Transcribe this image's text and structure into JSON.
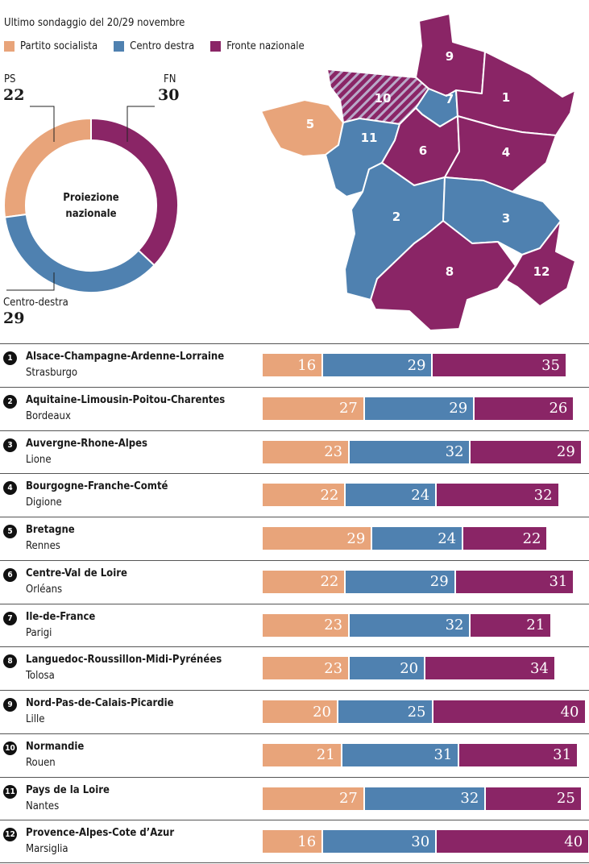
{
  "subtitle": "Ultimo sondaggio del 20/29 novembre",
  "colors": {
    "ps": "#e8a47a",
    "cd": "#4f81b0",
    "fn": "#8a2566"
  },
  "legend": [
    {
      "label": "Partito socialista",
      "color": "#e8a47a"
    },
    {
      "label": "Centro destra",
      "color": "#4f81b0"
    },
    {
      "label": "Fronte nazionale",
      "color": "#8a2566"
    }
  ],
  "national": {
    "center_label_1": "Proiezione",
    "center_label_2": "nazionale",
    "ps_label": "PS",
    "ps_value": "22",
    "fn_label": "FN",
    "fn_value": "30",
    "cd_label": "Centro-destra",
    "cd_value": "29"
  },
  "map": {
    "region_numbers": [
      "1",
      "2",
      "3",
      "4",
      "5",
      "6",
      "7",
      "8",
      "9",
      "10",
      "11",
      "12"
    ]
  },
  "chart_data": [
    {
      "type": "pie",
      "title": "Proiezione nazionale",
      "categories": [
        "PS",
        "Centro-destra",
        "FN"
      ],
      "values": [
        22,
        29,
        30
      ]
    },
    {
      "type": "bar",
      "orientation": "horizontal-stacked",
      "series_names": [
        "Partito socialista",
        "Centro destra",
        "Fronte nazionale"
      ],
      "rows": [
        {
          "num": "1",
          "name": "Alsace-Champagne-Ardenne-Lorraine",
          "city": "Strasburgo",
          "values": [
            16,
            29,
            35
          ]
        },
        {
          "num": "2",
          "name": "Aquitaine-Limousin-Poitou-Charentes",
          "city": "Bordeaux",
          "values": [
            27,
            29,
            26
          ]
        },
        {
          "num": "3",
          "name": "Auvergne-Rhone-Alpes",
          "city": "Lione",
          "values": [
            23,
            32,
            29
          ]
        },
        {
          "num": "4",
          "name": "Bourgogne-Franche-Comté",
          "city": "Digione",
          "values": [
            22,
            24,
            32
          ]
        },
        {
          "num": "5",
          "name": "Bretagne",
          "city": "Rennes",
          "values": [
            29,
            24,
            22
          ]
        },
        {
          "num": "6",
          "name": "Centre-Val de Loire",
          "city": "Orléans",
          "values": [
            22,
            29,
            31
          ]
        },
        {
          "num": "7",
          "name": "Ile-de-France",
          "city": "Parigi",
          "values": [
            23,
            32,
            21
          ]
        },
        {
          "num": "8",
          "name": "Languedoc-Roussillon-Midi-Pyrénées",
          "city": "Tolosa",
          "values": [
            23,
            20,
            34
          ]
        },
        {
          "num": "9",
          "name": "Nord-Pas-de-Calais-Picardie",
          "city": "Lille",
          "values": [
            20,
            25,
            40
          ]
        },
        {
          "num": "10",
          "name": "Normandie",
          "city": "Rouen",
          "values": [
            21,
            31,
            31
          ]
        },
        {
          "num": "11",
          "name": "Pays de la Loire",
          "city": "Nantes",
          "values": [
            27,
            32,
            25
          ]
        },
        {
          "num": "12",
          "name": "Provence-Alpes-Cote d’Azur",
          "city": "Marsiglia",
          "values": [
            16,
            30,
            40
          ]
        }
      ]
    }
  ]
}
